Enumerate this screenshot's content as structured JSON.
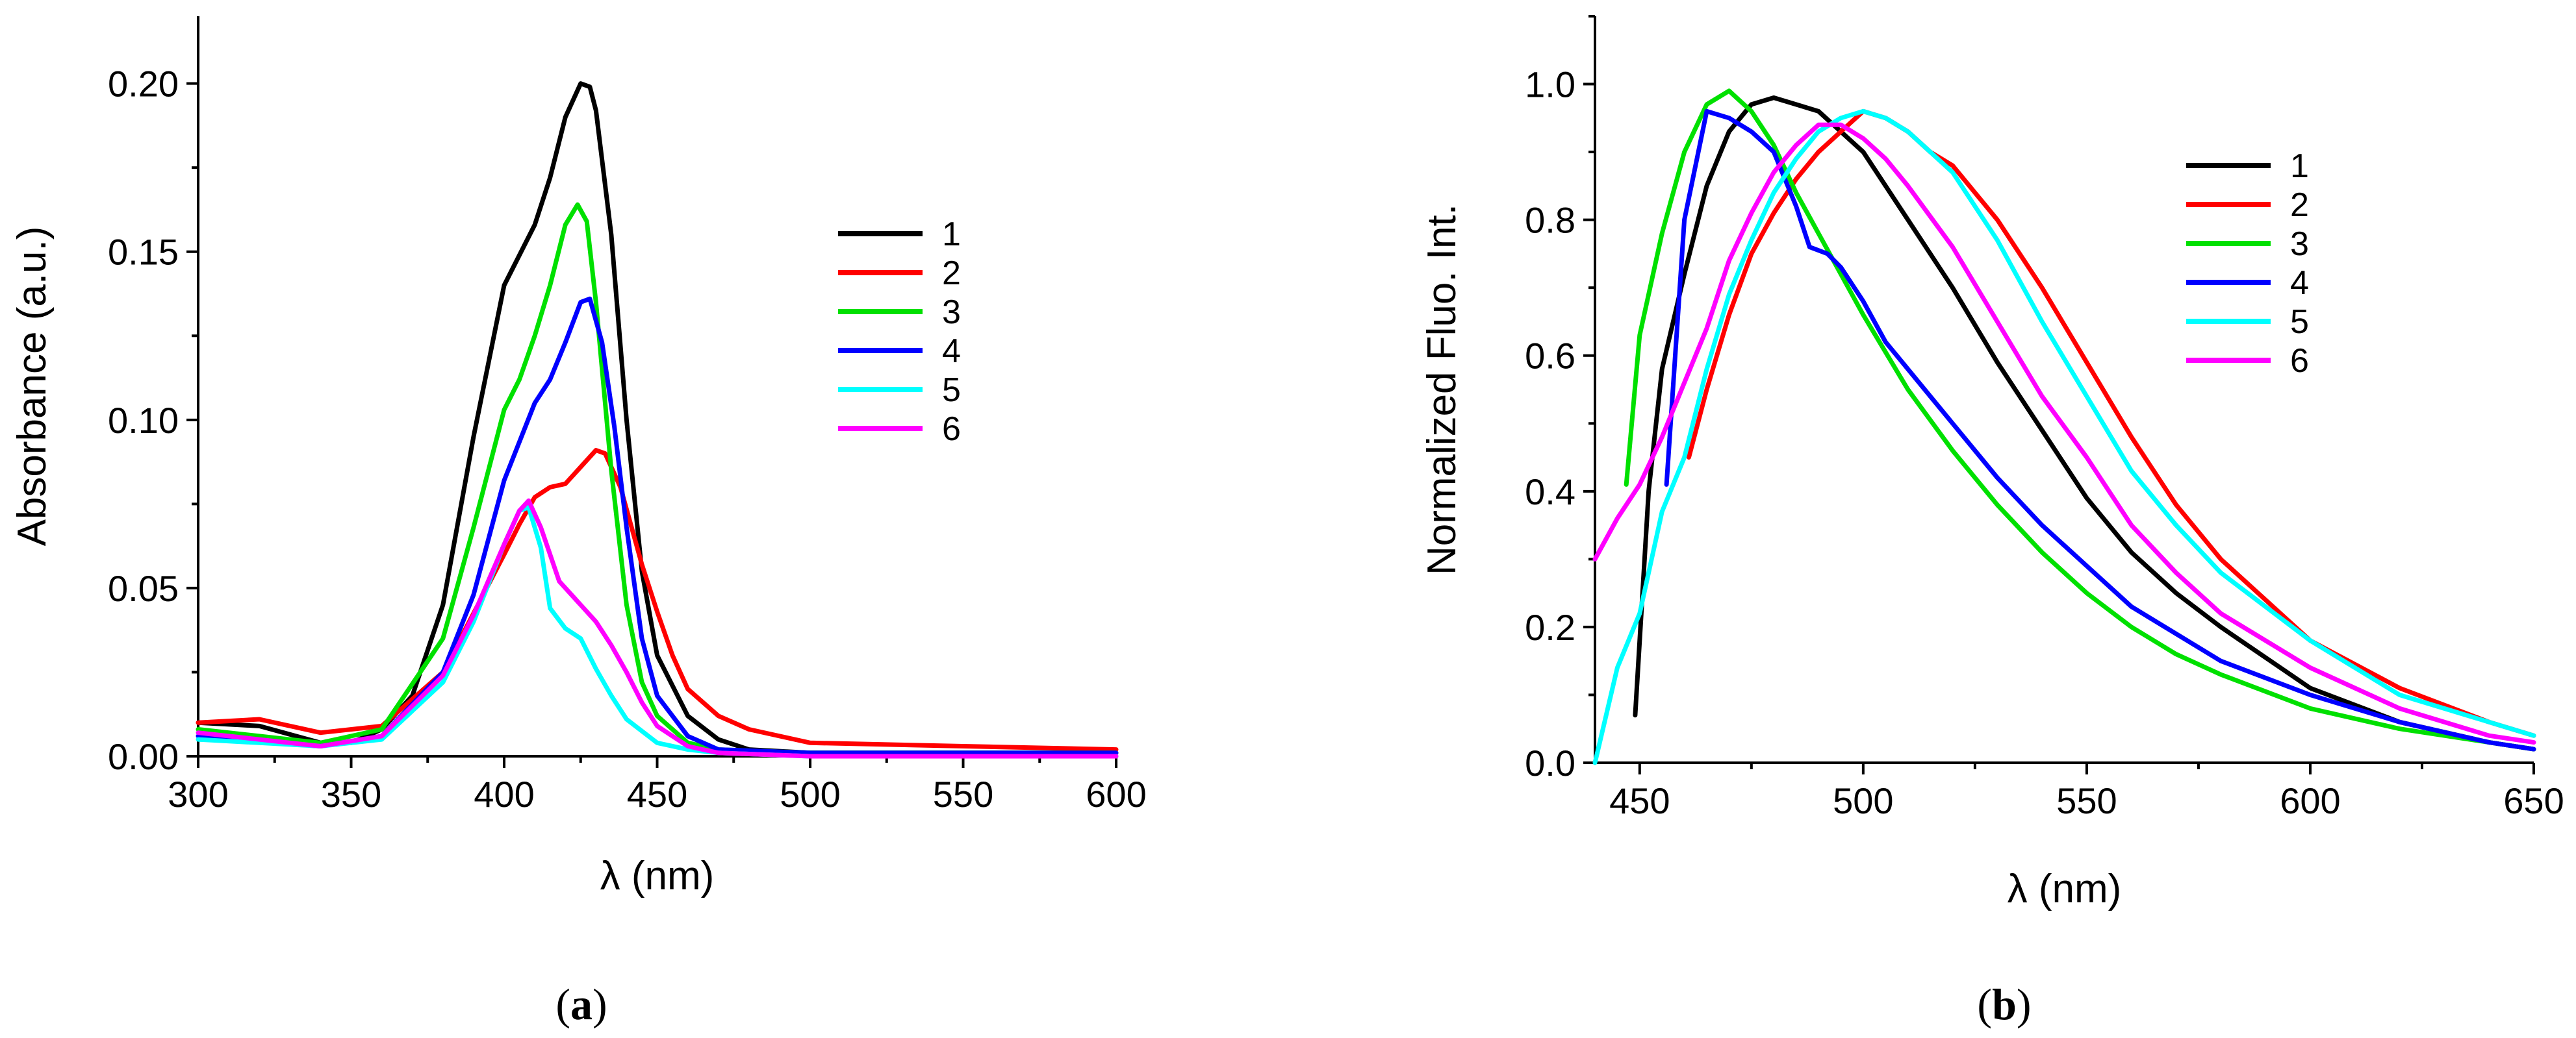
{
  "chart_data": [
    {
      "type": "line",
      "panel": "a",
      "title": "",
      "xlabel": "λ (nm)",
      "ylabel": "Absorbance (a.u.)",
      "xlim": [
        300,
        600
      ],
      "ylim": [
        0,
        0.22
      ],
      "xticks": [
        300,
        350,
        400,
        450,
        500,
        550,
        600
      ],
      "xtick_labels": [
        "300",
        "350",
        "400",
        "450",
        "500",
        "550",
        "600"
      ],
      "yticks": [
        0,
        0.05,
        0.1,
        0.15,
        0.2
      ],
      "ytick_labels": [
        "0.00",
        "0.05",
        "0.10",
        "0.15",
        "0.20"
      ],
      "legend_position": "right",
      "series": [
        {
          "name": "1",
          "color": "#000000",
          "x": [
            300,
            320,
            340,
            350,
            360,
            370,
            380,
            390,
            400,
            410,
            415,
            420,
            425,
            428,
            430,
            435,
            440,
            445,
            450,
            460,
            470,
            480,
            500,
            600
          ],
          "y": [
            0.01,
            0.009,
            0.004,
            0.004,
            0.008,
            0.018,
            0.045,
            0.095,
            0.14,
            0.158,
            0.172,
            0.19,
            0.2,
            0.199,
            0.192,
            0.155,
            0.1,
            0.055,
            0.03,
            0.012,
            0.005,
            0.002,
            0.001,
            0.001
          ]
        },
        {
          "name": "2",
          "color": "#ff0000",
          "x": [
            300,
            320,
            340,
            360,
            380,
            400,
            405,
            410,
            415,
            420,
            425,
            430,
            433,
            438,
            445,
            450,
            455,
            460,
            470,
            480,
            500,
            550,
            600
          ],
          "y": [
            0.01,
            0.011,
            0.007,
            0.009,
            0.025,
            0.06,
            0.069,
            0.077,
            0.08,
            0.081,
            0.086,
            0.091,
            0.09,
            0.08,
            0.057,
            0.043,
            0.03,
            0.02,
            0.012,
            0.008,
            0.004,
            0.003,
            0.002
          ]
        },
        {
          "name": "3",
          "color": "#00e000",
          "x": [
            300,
            340,
            360,
            380,
            390,
            400,
            405,
            410,
            415,
            420,
            424,
            427,
            430,
            435,
            440,
            445,
            450,
            460,
            470,
            500,
            600
          ],
          "y": [
            0.008,
            0.004,
            0.008,
            0.035,
            0.068,
            0.103,
            0.112,
            0.125,
            0.14,
            0.158,
            0.164,
            0.159,
            0.135,
            0.085,
            0.045,
            0.022,
            0.012,
            0.004,
            0.002,
            0.001,
            0.001
          ]
        },
        {
          "name": "4",
          "color": "#0000ff",
          "x": [
            300,
            340,
            360,
            380,
            390,
            400,
            410,
            415,
            420,
            425,
            428,
            432,
            436,
            440,
            445,
            450,
            460,
            470,
            500,
            600
          ],
          "y": [
            0.006,
            0.003,
            0.006,
            0.025,
            0.048,
            0.082,
            0.105,
            0.112,
            0.123,
            0.135,
            0.136,
            0.123,
            0.098,
            0.068,
            0.035,
            0.018,
            0.006,
            0.002,
            0.001,
            0.001
          ]
        },
        {
          "name": "5",
          "color": "#00ffff",
          "x": [
            300,
            340,
            360,
            380,
            390,
            400,
            405,
            408,
            412,
            415,
            420,
            425,
            430,
            435,
            440,
            450,
            460,
            470,
            500,
            600
          ],
          "y": [
            0.005,
            0.003,
            0.005,
            0.022,
            0.04,
            0.063,
            0.073,
            0.074,
            0.062,
            0.044,
            0.038,
            0.035,
            0.026,
            0.018,
            0.011,
            0.004,
            0.002,
            0.001,
            0.0,
            0.0
          ]
        },
        {
          "name": "6",
          "color": "#ff00ff",
          "x": [
            300,
            340,
            360,
            380,
            390,
            400,
            405,
            408,
            412,
            418,
            425,
            430,
            435,
            440,
            445,
            450,
            460,
            470,
            500,
            600
          ],
          "y": [
            0.007,
            0.003,
            0.006,
            0.024,
            0.042,
            0.063,
            0.073,
            0.076,
            0.068,
            0.052,
            0.045,
            0.04,
            0.033,
            0.025,
            0.016,
            0.009,
            0.003,
            0.001,
            0.0,
            0.0
          ]
        }
      ],
      "legend": [
        "1",
        "2",
        "3",
        "4",
        "5",
        "6"
      ]
    },
    {
      "type": "line",
      "panel": "b",
      "title": "",
      "xlabel": "λ (nm)",
      "ylabel": "Normalized Fluo. Int.",
      "xlim": [
        440,
        650
      ],
      "ylim": [
        0,
        1.1
      ],
      "xticks": [
        450,
        500,
        550,
        600,
        650
      ],
      "xtick_labels": [
        "450",
        "500",
        "550",
        "600",
        "650"
      ],
      "yticks": [
        0,
        0.2,
        0.4,
        0.6,
        0.8,
        1.0
      ],
      "ytick_labels": [
        "0.0",
        "0.2",
        "0.4",
        "0.6",
        "0.8",
        "1.0"
      ],
      "legend_position": "top-right",
      "series": [
        {
          "name": "1",
          "color": "#000000",
          "x": [
            449,
            452,
            455,
            460,
            465,
            470,
            475,
            480,
            485,
            490,
            500,
            510,
            520,
            530,
            540,
            550,
            560,
            570,
            580,
            600,
            620,
            640,
            650
          ],
          "y": [
            0.07,
            0.4,
            0.58,
            0.72,
            0.85,
            0.93,
            0.97,
            0.98,
            0.97,
            0.96,
            0.9,
            0.8,
            0.7,
            0.59,
            0.49,
            0.39,
            0.31,
            0.25,
            0.2,
            0.11,
            0.06,
            0.03,
            0.02
          ]
        },
        {
          "name": "2",
          "color": "#ff0000",
          "x": [
            461,
            465,
            470,
            475,
            480,
            485,
            490,
            495,
            500,
            505,
            510,
            515,
            520,
            525,
            530,
            540,
            550,
            560,
            570,
            580,
            590,
            600,
            620,
            640,
            650
          ],
          "y": [
            0.45,
            0.55,
            0.66,
            0.75,
            0.81,
            0.86,
            0.9,
            0.93,
            0.96,
            0.95,
            0.93,
            0.9,
            0.88,
            0.84,
            0.8,
            0.7,
            0.59,
            0.48,
            0.38,
            0.3,
            0.24,
            0.18,
            0.11,
            0.06,
            0.04
          ]
        },
        {
          "name": "3",
          "color": "#00e000",
          "x": [
            447,
            450,
            455,
            460,
            465,
            470,
            475,
            480,
            485,
            490,
            500,
            510,
            520,
            530,
            540,
            550,
            560,
            570,
            580,
            600,
            620,
            640,
            650
          ],
          "y": [
            0.41,
            0.63,
            0.78,
            0.9,
            0.97,
            0.99,
            0.96,
            0.91,
            0.84,
            0.78,
            0.66,
            0.55,
            0.46,
            0.38,
            0.31,
            0.25,
            0.2,
            0.16,
            0.13,
            0.08,
            0.05,
            0.03,
            0.02
          ]
        },
        {
          "name": "4",
          "color": "#0000ff",
          "x": [
            456,
            460,
            465,
            470,
            475,
            480,
            485,
            488,
            492,
            495,
            500,
            505,
            510,
            515,
            520,
            530,
            540,
            550,
            560,
            570,
            580,
            600,
            620,
            640,
            650
          ],
          "y": [
            0.41,
            0.8,
            0.96,
            0.95,
            0.93,
            0.9,
            0.82,
            0.76,
            0.75,
            0.73,
            0.68,
            0.62,
            0.58,
            0.54,
            0.5,
            0.42,
            0.35,
            0.29,
            0.23,
            0.19,
            0.15,
            0.1,
            0.06,
            0.03,
            0.02
          ]
        },
        {
          "name": "5",
          "color": "#00ffff",
          "x": [
            440,
            445,
            450,
            455,
            460,
            465,
            470,
            475,
            480,
            485,
            490,
            495,
            500,
            505,
            510,
            520,
            530,
            540,
            550,
            560,
            570,
            580,
            600,
            620,
            640,
            650
          ],
          "y": [
            0.0,
            0.14,
            0.22,
            0.37,
            0.45,
            0.58,
            0.69,
            0.77,
            0.84,
            0.89,
            0.93,
            0.95,
            0.96,
            0.95,
            0.93,
            0.87,
            0.77,
            0.65,
            0.54,
            0.43,
            0.35,
            0.28,
            0.18,
            0.1,
            0.06,
            0.04
          ]
        },
        {
          "name": "6",
          "color": "#ff00ff",
          "x": [
            440,
            445,
            450,
            455,
            460,
            465,
            470,
            475,
            480,
            485,
            490,
            495,
            500,
            505,
            510,
            520,
            530,
            540,
            550,
            560,
            570,
            580,
            600,
            620,
            640,
            650
          ],
          "y": [
            0.3,
            0.36,
            0.41,
            0.48,
            0.56,
            0.64,
            0.74,
            0.81,
            0.87,
            0.91,
            0.94,
            0.94,
            0.92,
            0.89,
            0.85,
            0.76,
            0.65,
            0.54,
            0.45,
            0.35,
            0.28,
            0.22,
            0.14,
            0.08,
            0.04,
            0.03
          ]
        }
      ],
      "legend": [
        "1",
        "2",
        "3",
        "4",
        "5",
        "6"
      ]
    }
  ],
  "panel_labels": {
    "a": {
      "open": "(",
      "letter": "a",
      "close": ")"
    },
    "b": {
      "open": "(",
      "letter": "b",
      "close": ")"
    }
  }
}
